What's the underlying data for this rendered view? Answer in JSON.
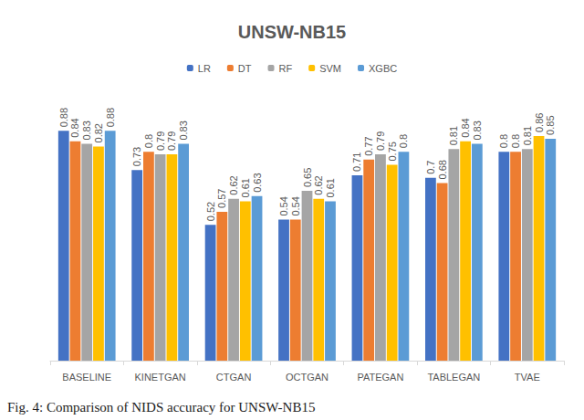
{
  "chart_data": {
    "type": "bar",
    "title": "UNSW-NB15",
    "caption": "Fig. 4: Comparison of NIDS accuracy for UNSW-NB15",
    "categories": [
      "BASELINE",
      "KINETGAN",
      "CTGAN",
      "OCTGAN",
      "PATEGAN",
      "TABLEGAN",
      "TVAE"
    ],
    "series": [
      {
        "name": "LR",
        "color": "#4472c4",
        "values": [
          0.88,
          0.73,
          0.52,
          0.54,
          0.71,
          0.7,
          0.8
        ]
      },
      {
        "name": "DT",
        "color": "#ed7d31",
        "values": [
          0.84,
          0.8,
          0.57,
          0.54,
          0.77,
          0.68,
          0.8
        ]
      },
      {
        "name": "RF",
        "color": "#a5a5a5",
        "values": [
          0.83,
          0.79,
          0.62,
          0.65,
          0.79,
          0.81,
          0.81
        ]
      },
      {
        "name": "SVM",
        "color": "#ffc000",
        "values": [
          0.82,
          0.79,
          0.61,
          0.62,
          0.75,
          0.84,
          0.86
        ]
      },
      {
        "name": "XGBC",
        "color": "#5b9bd5",
        "values": [
          0.88,
          0.83,
          0.63,
          0.61,
          0.8,
          0.83,
          0.85
        ]
      }
    ],
    "ylim": [
      0,
      1
    ],
    "grid": false,
    "legend": "top",
    "data_labels": true,
    "tick_labels": "x"
  }
}
